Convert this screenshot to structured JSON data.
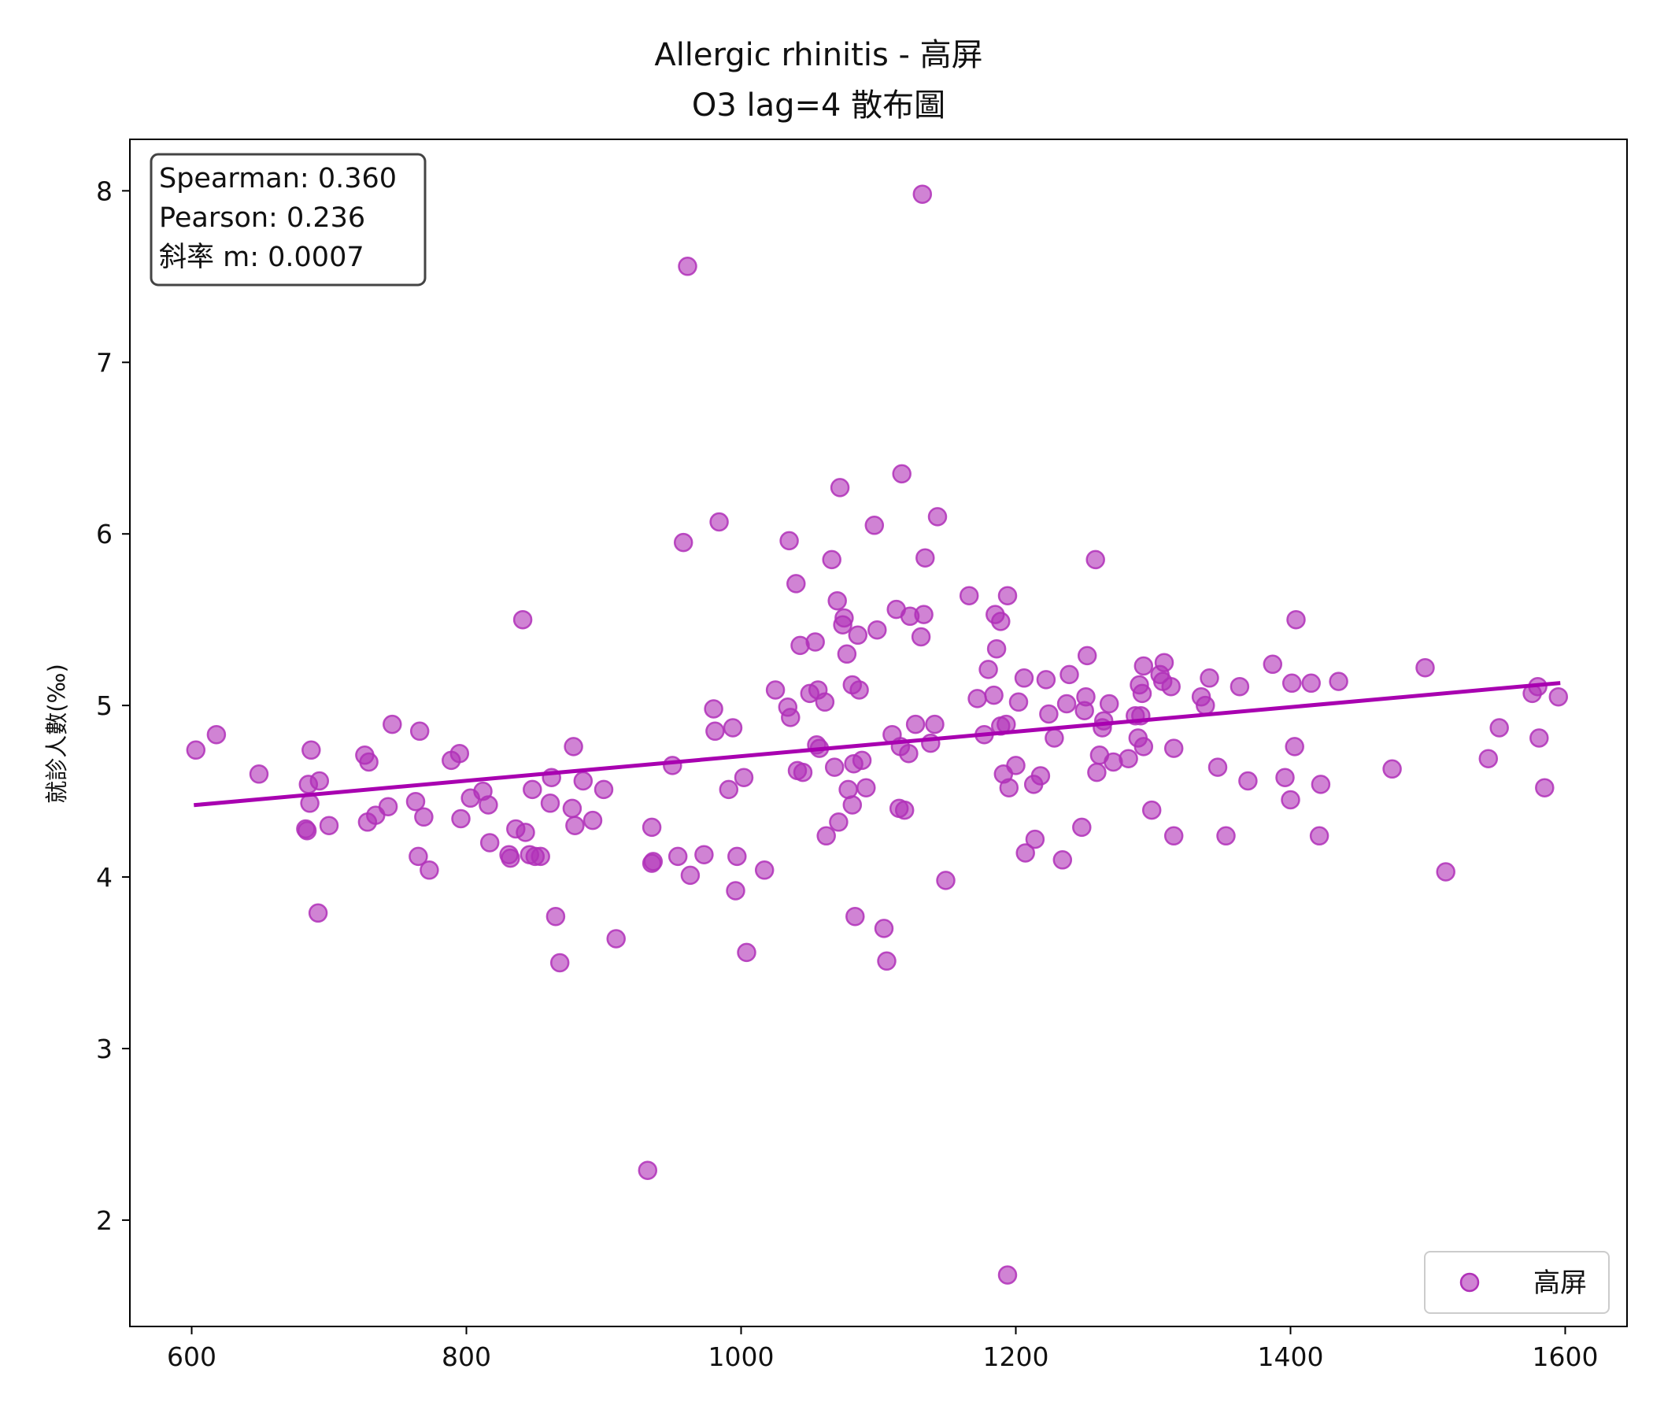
{
  "chart_data": {
    "type": "scatter",
    "title": "Allergic rhinitis - 高屏",
    "subtitle": "O3 lag=4 散布圖",
    "xlabel": "",
    "ylabel": "就診人數(‰)",
    "xlim": [
      555,
      1645
    ],
    "ylim": [
      1.38,
      8.3
    ],
    "xticks": [
      600,
      800,
      1000,
      1200,
      1400,
      1600
    ],
    "yticks": [
      2,
      3,
      4,
      5,
      6,
      7,
      8
    ],
    "grid": false,
    "legend_position": "bottom-right",
    "colors": {
      "point": "#b030b8",
      "line": "#a800b0"
    },
    "stats": {
      "spearman": "Spearman: 0.360",
      "pearson": "Pearson: 0.236",
      "slope": "斜率 m: 0.0007"
    },
    "series": [
      {
        "name": "高屏",
        "points": [
          [
            603,
            4.74
          ],
          [
            618,
            4.83
          ],
          [
            649,
            4.6
          ],
          [
            683,
            4.28
          ],
          [
            684,
            4.27
          ],
          [
            685,
            4.54
          ],
          [
            686,
            4.43
          ],
          [
            687,
            4.74
          ],
          [
            692,
            3.79
          ],
          [
            693,
            4.56
          ],
          [
            700,
            4.3
          ],
          [
            726,
            4.71
          ],
          [
            728,
            4.32
          ],
          [
            729,
            4.67
          ],
          [
            734,
            4.36
          ],
          [
            743,
            4.41
          ],
          [
            746,
            4.89
          ],
          [
            763,
            4.44
          ],
          [
            765,
            4.12
          ],
          [
            766,
            4.85
          ],
          [
            769,
            4.35
          ],
          [
            773,
            4.04
          ],
          [
            789,
            4.68
          ],
          [
            795,
            4.72
          ],
          [
            796,
            4.34
          ],
          [
            803,
            4.46
          ],
          [
            812,
            4.5
          ],
          [
            816,
            4.42
          ],
          [
            817,
            4.2
          ],
          [
            831,
            4.13
          ],
          [
            832,
            4.11
          ],
          [
            836,
            4.28
          ],
          [
            841,
            5.5
          ],
          [
            843,
            4.26
          ],
          [
            846,
            4.13
          ],
          [
            848,
            4.51
          ],
          [
            850,
            4.12
          ],
          [
            854,
            4.12
          ],
          [
            861,
            4.43
          ],
          [
            862,
            4.58
          ],
          [
            865,
            3.77
          ],
          [
            868,
            3.5
          ],
          [
            877,
            4.4
          ],
          [
            878,
            4.76
          ],
          [
            879,
            4.3
          ],
          [
            885,
            4.56
          ],
          [
            892,
            4.33
          ],
          [
            900,
            4.51
          ],
          [
            909,
            3.64
          ],
          [
            932,
            2.29
          ],
          [
            935,
            4.29
          ],
          [
            935,
            4.08
          ],
          [
            936,
            4.09
          ],
          [
            950,
            4.65
          ],
          [
            954,
            4.12
          ],
          [
            958,
            5.95
          ],
          [
            961,
            7.56
          ],
          [
            963,
            4.01
          ],
          [
            973,
            4.13
          ],
          [
            980,
            4.98
          ],
          [
            981,
            4.85
          ],
          [
            984,
            6.07
          ],
          [
            991,
            4.51
          ],
          [
            994,
            4.87
          ],
          [
            996,
            3.92
          ],
          [
            997,
            4.12
          ],
          [
            1002,
            4.58
          ],
          [
            1004,
            3.56
          ],
          [
            1017,
            4.04
          ],
          [
            1025,
            5.09
          ],
          [
            1034,
            4.99
          ],
          [
            1035,
            5.96
          ],
          [
            1036,
            4.93
          ],
          [
            1040,
            5.71
          ],
          [
            1041,
            4.62
          ],
          [
            1043,
            5.35
          ],
          [
            1045,
            4.61
          ],
          [
            1050,
            5.07
          ],
          [
            1054,
            5.37
          ],
          [
            1055,
            4.77
          ],
          [
            1056,
            5.09
          ],
          [
            1057,
            4.75
          ],
          [
            1061,
            5.02
          ],
          [
            1062,
            4.24
          ],
          [
            1066,
            5.85
          ],
          [
            1068,
            4.64
          ],
          [
            1070,
            5.61
          ],
          [
            1071,
            4.32
          ],
          [
            1072,
            6.27
          ],
          [
            1074,
            5.47
          ],
          [
            1075,
            5.51
          ],
          [
            1077,
            5.3
          ],
          [
            1078,
            4.51
          ],
          [
            1081,
            5.12
          ],
          [
            1081,
            4.42
          ],
          [
            1082,
            4.66
          ],
          [
            1083,
            3.77
          ],
          [
            1085,
            5.41
          ],
          [
            1086,
            5.09
          ],
          [
            1088,
            4.68
          ],
          [
            1091,
            4.52
          ],
          [
            1097,
            6.05
          ],
          [
            1099,
            5.44
          ],
          [
            1104,
            3.7
          ],
          [
            1106,
            3.51
          ],
          [
            1110,
            4.83
          ],
          [
            1113,
            5.56
          ],
          [
            1115,
            4.4
          ],
          [
            1116,
            4.76
          ],
          [
            1117,
            6.35
          ],
          [
            1119,
            4.39
          ],
          [
            1122,
            4.72
          ],
          [
            1123,
            5.52
          ],
          [
            1127,
            4.89
          ],
          [
            1131,
            5.4
          ],
          [
            1132,
            7.98
          ],
          [
            1133,
            5.53
          ],
          [
            1134,
            5.86
          ],
          [
            1138,
            4.78
          ],
          [
            1141,
            4.89
          ],
          [
            1143,
            6.1
          ],
          [
            1149,
            3.98
          ],
          [
            1166,
            5.64
          ],
          [
            1172,
            5.04
          ],
          [
            1177,
            4.83
          ],
          [
            1180,
            5.21
          ],
          [
            1184,
            5.06
          ],
          [
            1185,
            5.53
          ],
          [
            1186,
            5.33
          ],
          [
            1189,
            5.49
          ],
          [
            1189,
            4.88
          ],
          [
            1191,
            4.6
          ],
          [
            1193,
            4.89
          ],
          [
            1194,
            5.64
          ],
          [
            1195,
            4.52
          ],
          [
            1194,
            1.68
          ],
          [
            1200,
            4.65
          ],
          [
            1202,
            5.02
          ],
          [
            1206,
            5.16
          ],
          [
            1207,
            4.14
          ],
          [
            1213,
            4.54
          ],
          [
            1214,
            4.22
          ],
          [
            1218,
            4.59
          ],
          [
            1222,
            5.15
          ],
          [
            1224,
            4.95
          ],
          [
            1228,
            4.81
          ],
          [
            1234,
            4.1
          ],
          [
            1237,
            5.01
          ],
          [
            1239,
            5.18
          ],
          [
            1248,
            4.29
          ],
          [
            1250,
            4.97
          ],
          [
            1251,
            5.05
          ],
          [
            1252,
            5.29
          ],
          [
            1258,
            5.85
          ],
          [
            1259,
            4.61
          ],
          [
            1261,
            4.71
          ],
          [
            1263,
            4.87
          ],
          [
            1264,
            4.91
          ],
          [
            1268,
            5.01
          ],
          [
            1271,
            4.67
          ],
          [
            1282,
            4.69
          ],
          [
            1287,
            4.94
          ],
          [
            1289,
            4.81
          ],
          [
            1290,
            5.12
          ],
          [
            1291,
            4.94
          ],
          [
            1292,
            5.07
          ],
          [
            1293,
            5.23
          ],
          [
            1293,
            4.76
          ],
          [
            1299,
            4.39
          ],
          [
            1305,
            5.18
          ],
          [
            1307,
            5.14
          ],
          [
            1308,
            5.25
          ],
          [
            1313,
            5.11
          ],
          [
            1315,
            4.75
          ],
          [
            1315,
            4.24
          ],
          [
            1335,
            5.05
          ],
          [
            1338,
            5.0
          ],
          [
            1341,
            5.16
          ],
          [
            1347,
            4.64
          ],
          [
            1353,
            4.24
          ],
          [
            1363,
            5.11
          ],
          [
            1369,
            4.56
          ],
          [
            1387,
            5.24
          ],
          [
            1396,
            4.58
          ],
          [
            1400,
            4.45
          ],
          [
            1401,
            5.13
          ],
          [
            1403,
            4.76
          ],
          [
            1404,
            5.5
          ],
          [
            1415,
            5.13
          ],
          [
            1421,
            4.24
          ],
          [
            1422,
            4.54
          ],
          [
            1435,
            5.14
          ],
          [
            1474,
            4.63
          ],
          [
            1498,
            5.22
          ],
          [
            1513,
            4.03
          ],
          [
            1544,
            4.69
          ],
          [
            1552,
            4.87
          ],
          [
            1576,
            5.07
          ],
          [
            1580,
            5.11
          ],
          [
            1581,
            4.81
          ],
          [
            1585,
            4.52
          ],
          [
            1595,
            5.05
          ]
        ]
      }
    ],
    "regression": {
      "x": [
        603,
        1595
      ],
      "y": [
        4.42,
        5.13
      ]
    }
  }
}
